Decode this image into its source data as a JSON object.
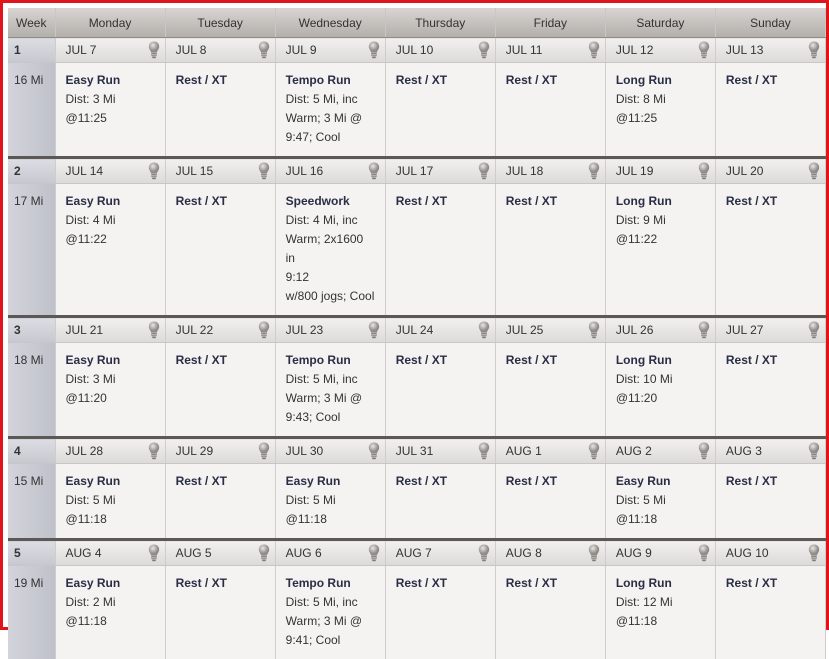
{
  "header": {
    "week": "Week",
    "days": [
      "Monday",
      "Tuesday",
      "Wednesday",
      "Thursday",
      "Friday",
      "Saturday",
      "Sunday"
    ]
  },
  "icon": "lightbulb-icon",
  "weeks": [
    {
      "num": "1",
      "miles": "16 Mi",
      "dates": [
        "JUL 7",
        "JUL 8",
        "JUL 9",
        "JUL 10",
        "JUL 11",
        "JUL 12",
        "JUL 13"
      ],
      "workouts": [
        {
          "title": "Easy Run",
          "lines": [
            "Dist: 3 Mi",
            "@11:25"
          ]
        },
        {
          "title": "Rest / XT",
          "lines": []
        },
        {
          "title": "Tempo Run",
          "lines": [
            "Dist: 5 Mi, inc",
            "Warm; 3 Mi @",
            "9:47; Cool"
          ]
        },
        {
          "title": "Rest / XT",
          "lines": []
        },
        {
          "title": "Rest / XT",
          "lines": []
        },
        {
          "title": "Long Run",
          "lines": [
            "Dist: 8 Mi",
            "@11:25"
          ]
        },
        {
          "title": "Rest / XT",
          "lines": []
        }
      ]
    },
    {
      "num": "2",
      "miles": "17 Mi",
      "dates": [
        "JUL 14",
        "JUL 15",
        "JUL 16",
        "JUL 17",
        "JUL 18",
        "JUL 19",
        "JUL 20"
      ],
      "workouts": [
        {
          "title": "Easy Run",
          "lines": [
            "Dist: 4 Mi",
            "@11:22"
          ]
        },
        {
          "title": "Rest / XT",
          "lines": []
        },
        {
          "title": "Speedwork",
          "lines": [
            "Dist: 4 Mi, inc",
            "Warm; 2x1600 in",
            "9:12",
            "w/800 jogs; Cool"
          ]
        },
        {
          "title": "Rest / XT",
          "lines": []
        },
        {
          "title": "Rest / XT",
          "lines": []
        },
        {
          "title": "Long Run",
          "lines": [
            "Dist: 9 Mi",
            "@11:22"
          ]
        },
        {
          "title": "Rest / XT",
          "lines": []
        }
      ]
    },
    {
      "num": "3",
      "miles": "18 Mi",
      "dates": [
        "JUL 21",
        "JUL 22",
        "JUL 23",
        "JUL 24",
        "JUL 25",
        "JUL 26",
        "JUL 27"
      ],
      "workouts": [
        {
          "title": "Easy Run",
          "lines": [
            "Dist: 3 Mi",
            "@11:20"
          ]
        },
        {
          "title": "Rest / XT",
          "lines": []
        },
        {
          "title": "Tempo Run",
          "lines": [
            "Dist: 5 Mi, inc",
            "Warm; 3 Mi @",
            "9:43; Cool"
          ]
        },
        {
          "title": "Rest / XT",
          "lines": []
        },
        {
          "title": "Rest / XT",
          "lines": []
        },
        {
          "title": "Long Run",
          "lines": [
            "Dist: 10 Mi",
            "@11:20"
          ]
        },
        {
          "title": "Rest / XT",
          "lines": []
        }
      ]
    },
    {
      "num": "4",
      "miles": "15 Mi",
      "dates": [
        "JUL 28",
        "JUL 29",
        "JUL 30",
        "JUL 31",
        "AUG 1",
        "AUG 2",
        "AUG 3"
      ],
      "workouts": [
        {
          "title": "Easy Run",
          "lines": [
            "Dist: 5 Mi",
            "@11:18"
          ]
        },
        {
          "title": "Rest / XT",
          "lines": []
        },
        {
          "title": "Easy Run",
          "lines": [
            "Dist: 5 Mi",
            "@11:18"
          ]
        },
        {
          "title": "Rest / XT",
          "lines": []
        },
        {
          "title": "Rest / XT",
          "lines": []
        },
        {
          "title": "Easy Run",
          "lines": [
            "Dist: 5 Mi",
            "@11:18"
          ]
        },
        {
          "title": "Rest / XT",
          "lines": []
        }
      ]
    },
    {
      "num": "5",
      "miles": "19 Mi",
      "dates": [
        "AUG 4",
        "AUG 5",
        "AUG 6",
        "AUG 7",
        "AUG 8",
        "AUG 9",
        "AUG 10"
      ],
      "workouts": [
        {
          "title": "Easy Run",
          "lines": [
            "Dist: 2 Mi",
            "@11:18"
          ]
        },
        {
          "title": "Rest / XT",
          "lines": []
        },
        {
          "title": "Tempo Run",
          "lines": [
            "Dist: 5 Mi, inc",
            "Warm; 3 Mi @",
            "9:41; Cool"
          ]
        },
        {
          "title": "Rest / XT",
          "lines": []
        },
        {
          "title": "Rest / XT",
          "lines": []
        },
        {
          "title": "Long Run",
          "lines": [
            "Dist: 12 Mi",
            "@11:18"
          ]
        },
        {
          "title": "Rest / XT",
          "lines": []
        }
      ]
    }
  ]
}
